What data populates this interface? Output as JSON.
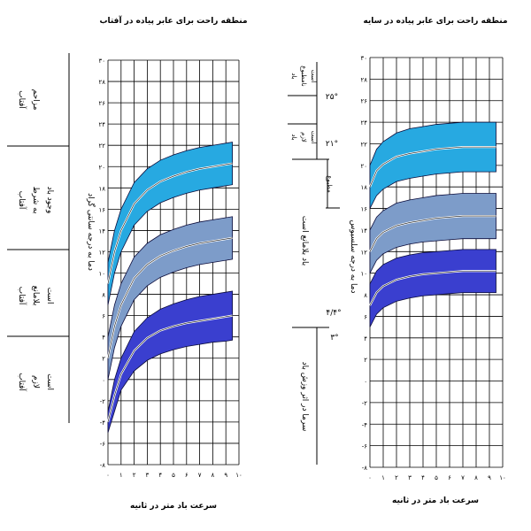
{
  "chart_data": [
    {
      "type": "area",
      "title": "منطقه راحت برای عابر پیاده در آفتاب",
      "xlabel": "سرعت باد متر در ثانیه",
      "ylabel": "دما به درجه سانتی گراد",
      "xlim": [
        0,
        10
      ],
      "ylim": [
        -8,
        30
      ],
      "x_ticks": [
        "۰",
        "۱",
        "۲",
        "۳",
        "۴",
        "۵",
        "۶",
        "۷",
        "۸",
        "۹",
        "۱۰"
      ],
      "y_ticks": [
        "-۸",
        "-۶",
        "-۴",
        "-۲",
        "۰",
        "۲",
        "۴",
        "۶",
        "۸",
        "۱۰",
        "۱۲",
        "۱۴",
        "۱۶",
        "۱۸",
        "۲۰",
        "۲۲",
        "۲۴",
        "۲۶",
        "۲۸",
        "۳۰"
      ],
      "grid": true,
      "x": [
        0,
        0.5,
        1,
        2,
        3,
        4,
        5,
        6,
        7,
        8,
        9,
        9.5
      ],
      "bands": [
        {
          "color": "#27a9e1",
          "upper": [
            11,
            14,
            16,
            18.5,
            19.8,
            20.6,
            21.1,
            21.5,
            21.8,
            22.0,
            22.2,
            22.3
          ],
          "lower": [
            7,
            10,
            12,
            14.5,
            15.8,
            16.6,
            17.1,
            17.5,
            17.8,
            18.0,
            18.2,
            18.3
          ]
        },
        {
          "color": "#7d9cc9",
          "upper": [
            4,
            7,
            9,
            11.5,
            12.8,
            13.6,
            14.1,
            14.5,
            14.8,
            15.0,
            15.2,
            15.3
          ],
          "lower": [
            0,
            3,
            5,
            7.5,
            8.8,
            9.6,
            10.1,
            10.5,
            10.8,
            11.0,
            11.2,
            11.3
          ]
        },
        {
          "color": "#3a3fcf",
          "upper": [
            -3,
            0,
            2,
            4.5,
            5.8,
            6.6,
            7.1,
            7.5,
            7.8,
            8.0,
            8.2,
            8.3
          ],
          "lower": [
            -5,
            -3,
            -1,
            0.8,
            1.8,
            2.4,
            2.8,
            3.1,
            3.3,
            3.5,
            3.6,
            3.7
          ]
        }
      ],
      "lines": [
        [
          9,
          12,
          14,
          16.5,
          17.8,
          18.6,
          19.1,
          19.5,
          19.8,
          20.0,
          20.2,
          20.3
        ],
        [
          2,
          5,
          7,
          9.5,
          10.8,
          11.6,
          12.1,
          12.5,
          12.8,
          13.0,
          13.2,
          13.3
        ],
        [
          -4,
          -1.5,
          0.5,
          2.7,
          3.9,
          4.6,
          5.0,
          5.3,
          5.5,
          5.7,
          5.9,
          6.0
        ]
      ],
      "side_labels": [
        {
          "lines": [
            "آفتاب",
            "مزاحم"
          ]
        },
        {
          "lines": [
            "آفتاب",
            "به شرط",
            "وجود باد"
          ]
        },
        {
          "lines": [
            "آفتاب",
            "بلامانع",
            "است"
          ]
        },
        {
          "lines": [
            "آفتاب",
            "لازم",
            "است"
          ]
        }
      ]
    },
    {
      "type": "area",
      "title": "منطقه راحت برای عابر پیاده در سایه",
      "xlabel": "سرعت باد متر در ثانیه",
      "ylabel": "دما به درجه سلسیوس",
      "xlim": [
        0,
        10
      ],
      "ylim": [
        -8,
        30
      ],
      "x_ticks": [
        "۰",
        "۱",
        "۲",
        "۳",
        "۴",
        "۵",
        "۶",
        "۷",
        "۸",
        "۹",
        "۱۰"
      ],
      "y_ticks": [
        "-۸",
        "-۶",
        "-۴",
        "-۲",
        "۰",
        "۲",
        "۴",
        "۶",
        "۸",
        "۱۰",
        "۱۲",
        "۱۴",
        "۱۶",
        "۱۸",
        "۲۰",
        "۲۲",
        "۲۴",
        "۲۶",
        "۲۸",
        "۳۰"
      ],
      "grid": true,
      "x": [
        0,
        0.5,
        1,
        2,
        3,
        4,
        5,
        6,
        7,
        8,
        9,
        9.5
      ],
      "bands": [
        {
          "color": "#27a9e1",
          "upper": [
            20,
            21.5,
            22.2,
            23.0,
            23.4,
            23.6,
            23.8,
            23.9,
            24.0,
            24.0,
            24.0,
            24.0
          ],
          "lower": [
            16,
            17.2,
            17.8,
            18.5,
            18.8,
            19.0,
            19.2,
            19.3,
            19.4,
            19.4,
            19.4,
            19.4
          ]
        },
        {
          "color": "#7d9cc9",
          "upper": [
            14,
            15.2,
            15.8,
            16.5,
            16.8,
            17.0,
            17.2,
            17.3,
            17.4,
            17.4,
            17.4,
            17.4
          ],
          "lower": [
            10,
            11.2,
            11.8,
            12.4,
            12.7,
            12.9,
            13.0,
            13.1,
            13.2,
            13.2,
            13.2,
            13.2
          ]
        },
        {
          "color": "#3a3fcf",
          "upper": [
            9,
            10.2,
            10.8,
            11.4,
            11.7,
            11.9,
            12.0,
            12.1,
            12.2,
            12.2,
            12.2,
            12.2
          ],
          "lower": [
            5,
            6.2,
            6.8,
            7.4,
            7.7,
            7.9,
            8.0,
            8.1,
            8.2,
            8.2,
            8.2,
            8.2
          ]
        }
      ],
      "lines": [
        [
          18,
          19.5,
          20.1,
          20.8,
          21.1,
          21.3,
          21.5,
          21.6,
          21.7,
          21.7,
          21.7,
          21.7
        ],
        [
          12,
          13.2,
          13.8,
          14.4,
          14.7,
          14.9,
          15.1,
          15.2,
          15.3,
          15.3,
          15.3,
          15.3
        ],
        [
          7,
          8.2,
          8.8,
          9.4,
          9.7,
          9.9,
          10.0,
          10.1,
          10.2,
          10.2,
          10.2,
          10.2
        ]
      ],
      "side_labels": [
        {
          "lines": [
            "باد",
            "نامطبوع",
            "است"
          ],
          "value": "۲۵°"
        },
        {
          "lines": [
            "باد",
            "لازم",
            "است"
          ],
          "value": "۲۱°"
        },
        {
          "lines": [
            "مطبوع"
          ]
        },
        {
          "lines": [
            "باد بلامانع است"
          ],
          "value": "۴/۴°"
        },
        {
          "lines": [
            "سرما در اثر وزش باد"
          ],
          "value": "۳°"
        }
      ]
    }
  ]
}
